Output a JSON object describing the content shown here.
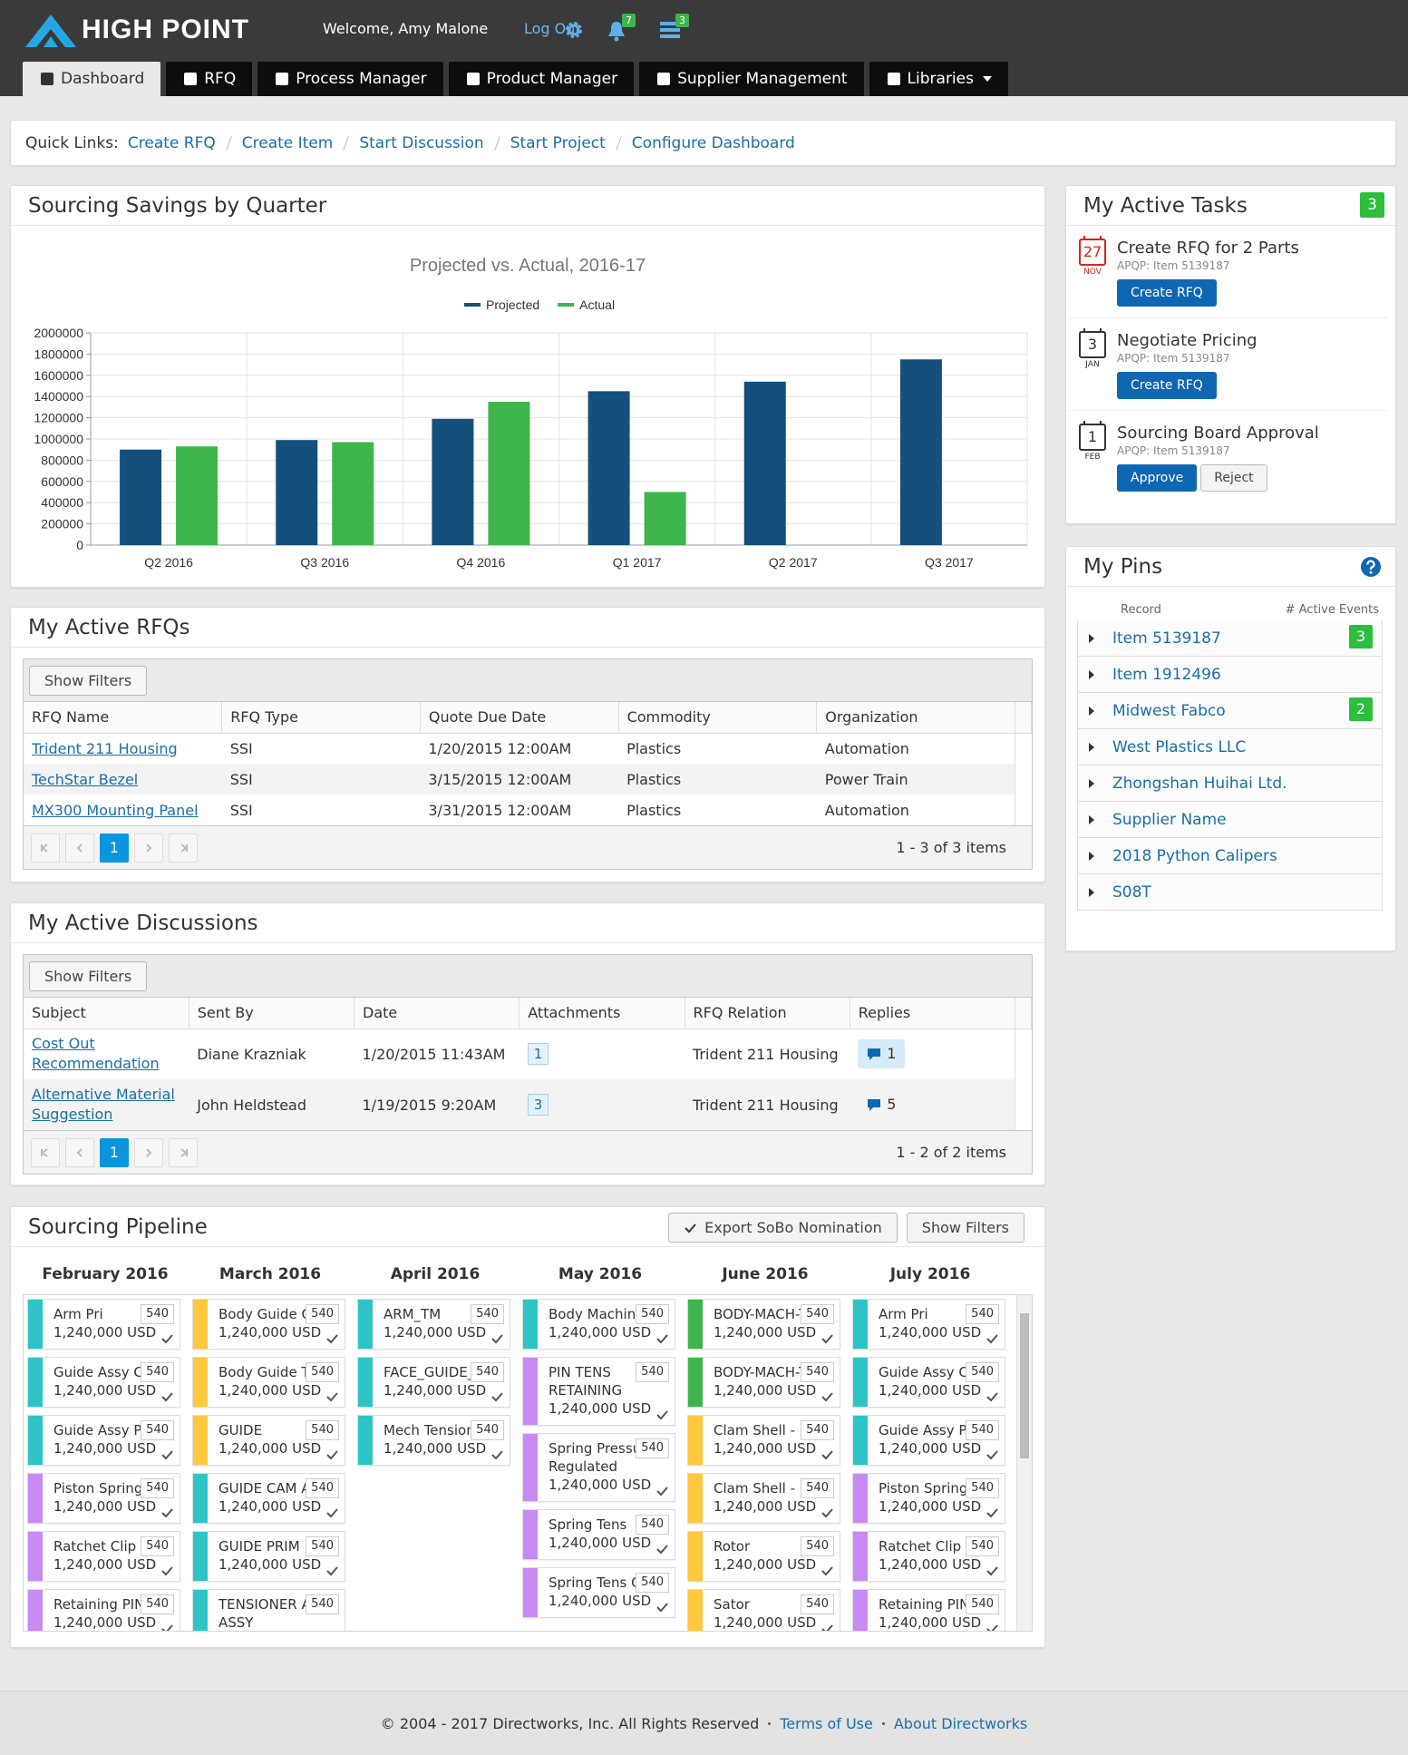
{
  "header": {
    "brand": "HIGH POINT",
    "welcome": "Welcome, Amy Malone",
    "logout": "Log Out",
    "alerts": 7,
    "messages": 3
  },
  "nav": {
    "tabs": [
      "Dashboard",
      "RFQ",
      "Process Manager",
      "Product Manager",
      "Supplier Management",
      "Libraries"
    ],
    "active": 0
  },
  "quick_links": {
    "label": "Quick Links:",
    "links": [
      "Create RFQ",
      "Create Item",
      "Start Discussion",
      "Start Project",
      "Configure Dashboard"
    ]
  },
  "savings": {
    "title": "Sourcing Savings by Quarter"
  },
  "chart_data": {
    "type": "bar",
    "title": "Projected vs. Actual, 2016-17",
    "categories": [
      "Q2 2016",
      "Q3 2016",
      "Q4 2016",
      "Q1 2017",
      "Q2 2017",
      "Q3 2017"
    ],
    "series": [
      {
        "name": "Projected",
        "color": "#154f7b",
        "values": [
          900000,
          990000,
          1190000,
          1450000,
          1540000,
          1750000
        ]
      },
      {
        "name": "Actual",
        "color": "#3db54a",
        "values": [
          930000,
          970000,
          1350000,
          500000,
          null,
          null
        ]
      }
    ],
    "ylim": [
      0,
      2000000
    ],
    "yticks": [
      0,
      200000,
      400000,
      600000,
      800000,
      1000000,
      1200000,
      1400000,
      1600000,
      1800000,
      2000000
    ],
    "grid": true,
    "legend": "top"
  },
  "tasks": {
    "title": "My Active Tasks",
    "count": 3,
    "items": [
      {
        "day": 27,
        "month": "NOV",
        "color": "#d9251c",
        "title": "Create RFQ for 2 Parts",
        "subtitle": "APQP: Item 5139187",
        "actions": [
          "Create RFQ"
        ]
      },
      {
        "day": 3,
        "month": "JAN",
        "color": "#333333",
        "title": "Negotiate Pricing",
        "subtitle": "APQP: Item 5139187",
        "actions": [
          "Create RFQ"
        ]
      },
      {
        "day": 1,
        "month": "FEB",
        "color": "#333333",
        "title": "Sourcing Board Approval",
        "subtitle": "APQP: Item 5139187",
        "actions": [
          "Approve",
          "Reject"
        ]
      }
    ]
  },
  "pins": {
    "title": "My Pins",
    "columns": [
      "Record",
      "# Active Events"
    ],
    "items": [
      {
        "name": "Item 5139187",
        "events": 3
      },
      {
        "name": "Item 1912496"
      },
      {
        "name": "Midwest Fabco",
        "events": 2
      },
      {
        "name": "West Plastics LLC"
      },
      {
        "name": "Zhongshan Huihai Ltd."
      },
      {
        "name": "Supplier Name"
      },
      {
        "name": "2018 Python Calipers"
      },
      {
        "name": "S08T"
      }
    ]
  },
  "rfqs": {
    "title": "My Active RFQs",
    "filter_button": "Show Filters",
    "columns": [
      "RFQ Name",
      "RFQ Type",
      "Quote Due Date",
      "Commodity",
      "Organization"
    ],
    "rows": [
      [
        "Trident 211 Housing",
        "SSI",
        "1/20/2015 12:00AM",
        "Plastics",
        "Automation"
      ],
      [
        "TechStar Bezel",
        "SSI",
        "3/15/2015 12:00AM",
        "Plastics",
        "Power Train"
      ],
      [
        "MX300 Mounting Panel",
        "SSI",
        "3/31/2015 12:00AM",
        "Plastics",
        "Automation"
      ]
    ],
    "page": 1,
    "summary": "1 - 3 of 3 items"
  },
  "discussions": {
    "title": "My Active Discussions",
    "filter_button": "Show Filters",
    "columns": [
      "Subject",
      "Sent By",
      "Date",
      "Attachments",
      "RFQ Relation",
      "Replies"
    ],
    "rows": [
      [
        "Cost Out Recommendation",
        "Diane Krazniak",
        "1/20/2015 11:43AM",
        1,
        "Trident 211 Housing",
        1
      ],
      [
        "Alternative Material Suggestion",
        "John Heldstead",
        "1/19/2015 9:20AM",
        3,
        "Trident 211 Housing",
        5
      ]
    ],
    "page": 1,
    "summary": "1 - 2 of 2 items"
  },
  "pipeline": {
    "title": "Sourcing Pipeline",
    "buttons": [
      "Export SoBo Nomination",
      "Show Filters"
    ],
    "columns": [
      {
        "month": "February 2016",
        "cards": [
          {
            "name": "Arm Pri",
            "amount": "1,240,000 USD",
            "code": 540,
            "color": "#2ec4c6"
          },
          {
            "name": "Guide Assy Ca",
            "amount": "1,240,000 USD",
            "code": 540,
            "color": "#2ec4c6"
          },
          {
            "name": "Guide Assy PR",
            "amount": "1,240,000 USD",
            "code": 540,
            "color": "#2ec4c6"
          },
          {
            "name": "Piston Spring",
            "amount": "1,240,000 USD",
            "code": 540,
            "color": "#c68af0"
          },
          {
            "name": "Ratchet Clip",
            "amount": "1,240,000 USD",
            "code": 540,
            "color": "#c68af0"
          },
          {
            "name": "Retaining PIN",
            "amount": "1,240,000 USD",
            "code": 540,
            "color": "#c68af0"
          }
        ]
      },
      {
        "month": "March 2016",
        "cards": [
          {
            "name": "Body Guide Ca",
            "amount": "1,240,000 USD",
            "code": 540,
            "color": "#ffc83d"
          },
          {
            "name": "Body Guide Te",
            "amount": "1,240,000 USD",
            "code": 540,
            "color": "#ffc83d"
          },
          {
            "name": "GUIDE",
            "amount": "1,240,000 USD",
            "code": 540,
            "color": "#ffc83d"
          },
          {
            "name": "GUIDE CAM AS",
            "amount": "1,240,000 USD",
            "code": 540,
            "color": "#2ec4c6"
          },
          {
            "name": "GUIDE PRIM",
            "amount": "1,240,000 USD",
            "code": 540,
            "color": "#2ec4c6"
          },
          {
            "name": "TENSIONER AR ASSY",
            "amount": "1,240,000 USD",
            "code": 540,
            "color": "#2ec4c6"
          }
        ]
      },
      {
        "month": "April 2016",
        "cards": [
          {
            "name": "ARM_TM",
            "amount": "1,240,000 USD",
            "code": 540,
            "color": "#2ec4c6"
          },
          {
            "name": "FACE_GUIDE_V",
            "amount": "1,240,000 USD",
            "code": 540,
            "color": "#2ec4c6"
          },
          {
            "name": "Mech Tensione",
            "amount": "1,240,000 USD",
            "code": 540,
            "color": "#2ec4c6"
          }
        ]
      },
      {
        "month": "May 2016",
        "cards": [
          {
            "name": "Body Machine",
            "amount": "1,240,000 USD",
            "code": 540,
            "color": "#2ec4c6"
          },
          {
            "name": "PIN TENS RETAINING",
            "amount": "1,240,000 USD",
            "code": 540,
            "color": "#c68af0"
          },
          {
            "name": "Spring Pressur Regulated",
            "amount": "1,240,000 USD",
            "code": 540,
            "color": "#c68af0"
          },
          {
            "name": "Spring Tens",
            "amount": "1,240,000 USD",
            "code": 540,
            "color": "#c68af0"
          },
          {
            "name": "Spring Tens Of",
            "amount": "1,240,000 USD",
            "code": 540,
            "color": "#c68af0"
          }
        ]
      },
      {
        "month": "June 2016",
        "cards": [
          {
            "name": "BODY-MACH-T",
            "amount": "1,240,000 USD",
            "code": 540,
            "color": "#3db54a"
          },
          {
            "name": "BODY-MACH-T",
            "amount": "1,240,000 USD",
            "code": 540,
            "color": "#3db54a"
          },
          {
            "name": "Clam Shell - Lo",
            "amount": "1,240,000 USD",
            "code": 540,
            "color": "#ffc83d"
          },
          {
            "name": "Clam Shell - U",
            "amount": "1,240,000 USD",
            "code": 540,
            "color": "#ffc83d"
          },
          {
            "name": "Rotor",
            "amount": "1,240,000 USD",
            "code": 540,
            "color": "#ffc83d"
          },
          {
            "name": "Sator",
            "amount": "1,240,000 USD",
            "code": 540,
            "color": "#ffc83d"
          }
        ]
      },
      {
        "month": "July 2016",
        "cards": [
          {
            "name": "Arm Pri",
            "amount": "1,240,000 USD",
            "code": 540,
            "color": "#2ec4c6"
          },
          {
            "name": "Guide Assy Ca",
            "amount": "1,240,000 USD",
            "code": 540,
            "color": "#2ec4c6"
          },
          {
            "name": "Guide Assy PR",
            "amount": "1,240,000 USD",
            "code": 540,
            "color": "#2ec4c6"
          },
          {
            "name": "Piston Spring",
            "amount": "1,240,000 USD",
            "code": 540,
            "color": "#c68af0"
          },
          {
            "name": "Ratchet Clip",
            "amount": "1,240,000 USD",
            "code": 540,
            "color": "#c68af0"
          },
          {
            "name": "Retaining PIN",
            "amount": "1,240,000 USD",
            "code": 540,
            "color": "#c68af0"
          }
        ]
      }
    ]
  },
  "footer": {
    "copyright": "© 2004 - 2017 Directworks, Inc. All Rights Reserved",
    "links": [
      "Terms of Use",
      "About Directworks"
    ]
  }
}
